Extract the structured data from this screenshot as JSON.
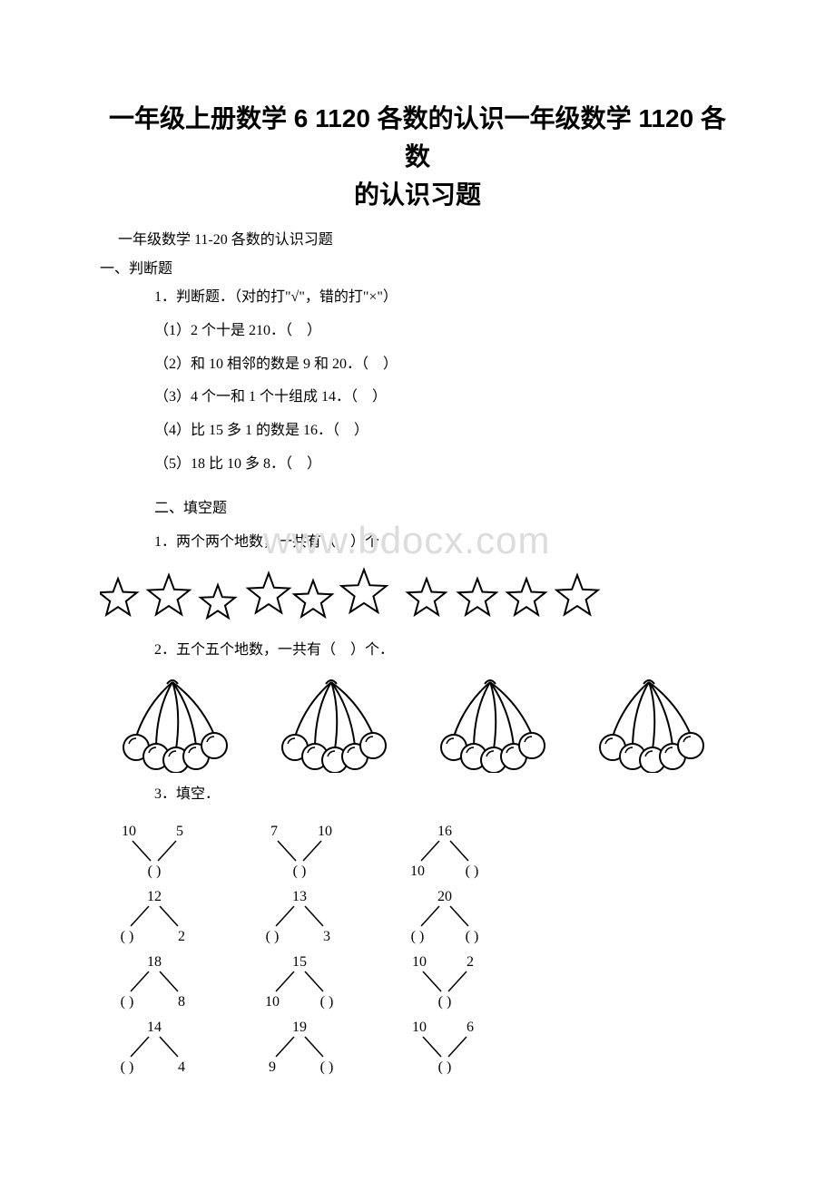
{
  "title_line1": "一年级上册数学 6 1120 各数的认识一年级数学 1120 各数",
  "title_line2": "的认识习题",
  "subtitle": "一年级数学 11-20 各数的认识习题",
  "section1": "一、判断题",
  "s1_q1": "1．判断题．（对的打\"√\"，错的打\"×\"）",
  "s1_q1_1": "（1）2 个十是 210．（　）",
  "s1_q1_2": "（2）和 10 相邻的数是 9 和 20．（　）",
  "s1_q1_3": "（3）4 个一和 1 个十组成 14．（　）",
  "s1_q1_4": "（4）比 15 多 1 的数是 16．（　）",
  "s1_q1_5": "（5）18 比 10 多 8．（　）",
  "section2": "二、填空题",
  "s2_q1": "1．两个两个地数，一共有（　）个．",
  "s2_q2": "2．五个五个地数，一共有（　）个．",
  "s2_q3": "3．填空．",
  "watermark_text": "www.bdocx.com",
  "stars": {
    "count": 10,
    "groups": [
      2,
      2,
      2,
      2,
      2
    ],
    "stroke": "#000000",
    "fill": "#ffffff"
  },
  "cherries": {
    "bunches": 4,
    "per_bunch": 5,
    "stroke": "#000000"
  },
  "bonds": {
    "rows": [
      [
        {
          "tl": "10",
          "tr": "5",
          "b": "( )",
          "mode": "down"
        },
        {
          "tl": "7",
          "tr": "10",
          "b": "( )",
          "mode": "down"
        },
        {
          "t": "16",
          "bl": "10",
          "br": "( )",
          "mode": "up"
        }
      ],
      [
        {
          "t": "12",
          "bl": "( )",
          "br": "2",
          "mode": "up"
        },
        {
          "t": "13",
          "bl": "( )",
          "br": "3",
          "mode": "up"
        },
        {
          "t": "20",
          "bl": "( )",
          "br": "( )",
          "mode": "up"
        }
      ],
      [
        {
          "t": "18",
          "bl": "( )",
          "br": "8",
          "mode": "up"
        },
        {
          "t": "15",
          "bl": "10",
          "br": "( )",
          "mode": "up"
        },
        {
          "tl": "10",
          "tr": "2",
          "b": "( )",
          "mode": "down"
        }
      ],
      [
        {
          "t": "14",
          "bl": "( )",
          "br": "4",
          "mode": "up"
        },
        {
          "t": "19",
          "bl": "9",
          "br": "( )",
          "mode": "up"
        },
        {
          "tl": "10",
          "tr": "6",
          "b": "( )",
          "mode": "down"
        }
      ]
    ],
    "stroke": "#000000",
    "font_size": 16
  }
}
